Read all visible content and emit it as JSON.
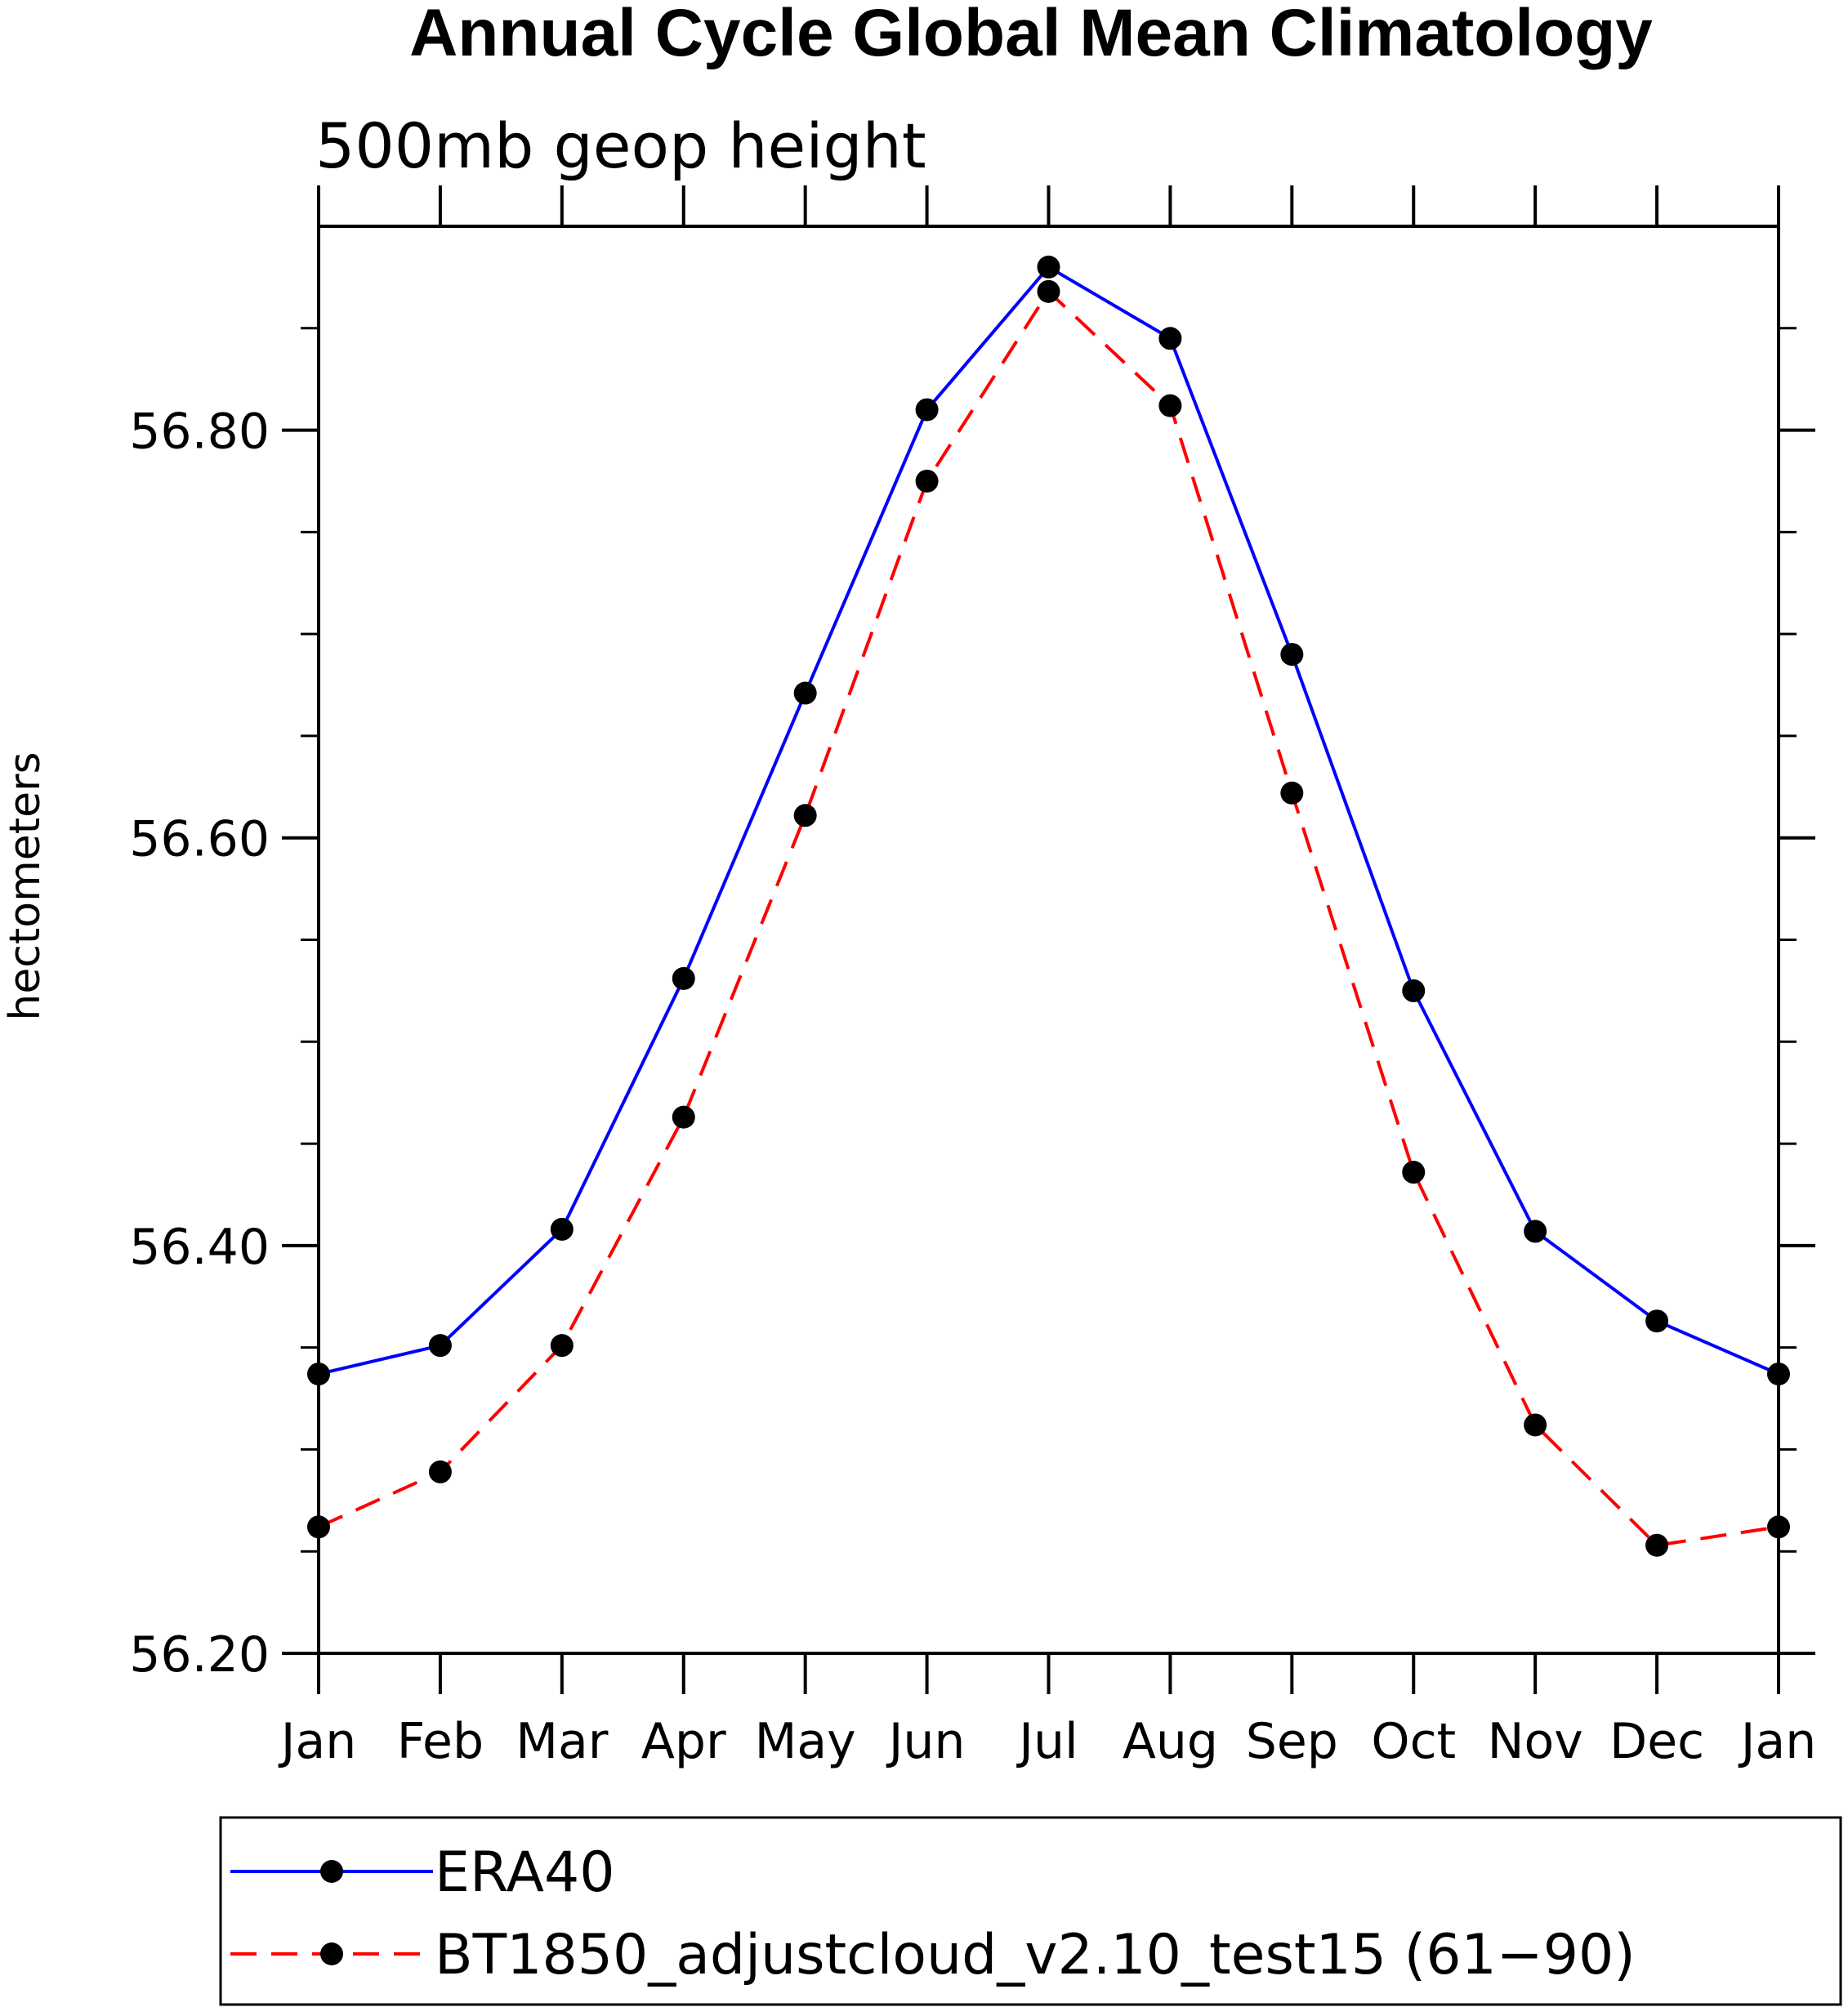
{
  "chart_data": {
    "type": "line",
    "title": "Annual Cycle Global Mean Climatology",
    "subtitle": "500mb geop height",
    "xlabel": "",
    "ylabel": "hectometers",
    "categories": [
      "Jan",
      "Feb",
      "Mar",
      "Apr",
      "May",
      "Jun",
      "Jul",
      "Aug",
      "Sep",
      "Oct",
      "Nov",
      "Dec",
      "Jan"
    ],
    "ylim": [
      56.2,
      56.9
    ],
    "y_major_ticks": [
      56.2,
      56.4,
      56.6,
      56.8
    ],
    "y_tick_labels": [
      "56.20",
      "56.40",
      "56.60",
      "56.80"
    ],
    "y_minor_tick_step": 0.05,
    "grid": false,
    "legend_position": "bottom",
    "series": [
      {
        "name": "ERA40",
        "color": "#0000ff",
        "line_style": "solid",
        "marker": "filled-circle",
        "values": [
          56.337,
          56.351,
          56.408,
          56.531,
          56.671,
          56.81,
          56.88,
          56.845,
          56.69,
          56.525,
          56.407,
          56.363,
          56.337
        ]
      },
      {
        "name": "BT1850_adjustcloud_v2.10_test15 (61−90)",
        "color": "#ff0000",
        "line_style": "dashed",
        "marker": "filled-circle",
        "values": [
          56.262,
          56.289,
          56.351,
          56.463,
          56.611,
          56.775,
          56.868,
          56.812,
          56.622,
          56.436,
          56.312,
          56.253,
          56.262
        ]
      }
    ]
  }
}
